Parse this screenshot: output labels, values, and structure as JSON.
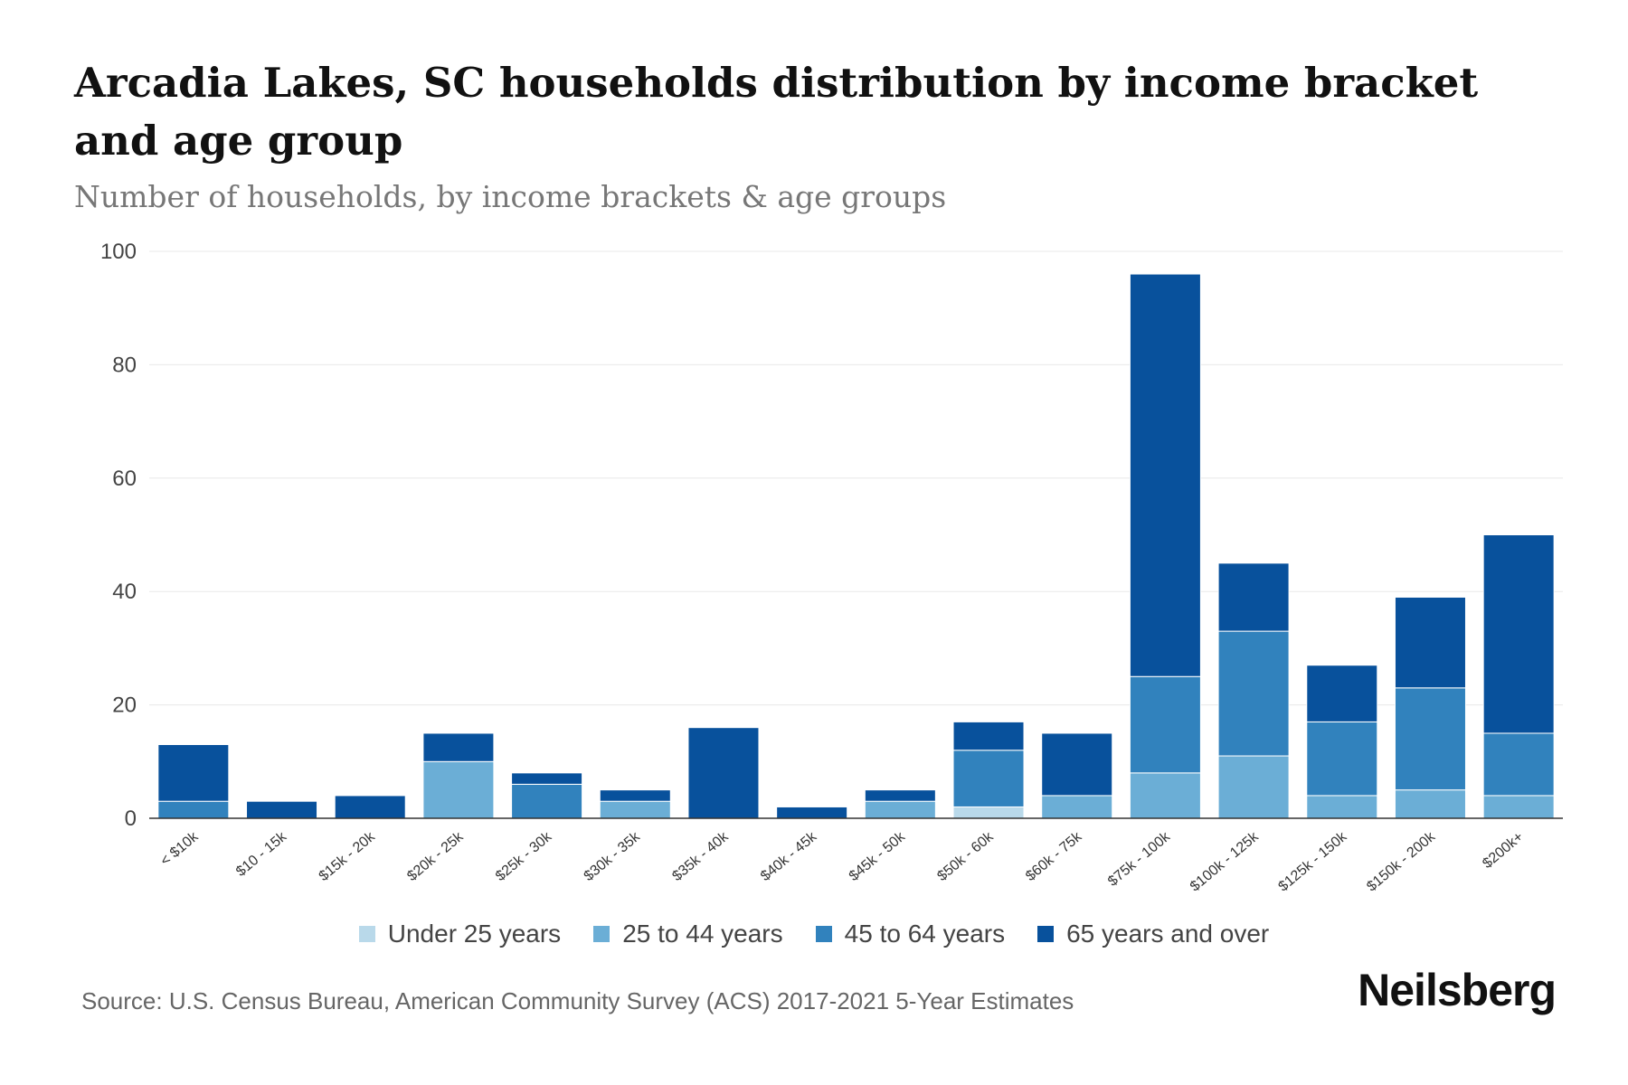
{
  "chart_data": {
    "type": "bar",
    "stacked": true,
    "title": "Arcadia Lakes, SC households distribution by income bracket and age group",
    "subtitle": "Number of households, by income brackets & age groups",
    "xlabel": "",
    "ylabel": "",
    "ylim": [
      0,
      100
    ],
    "yticks": [
      0,
      20,
      40,
      60,
      80,
      100
    ],
    "grid": true,
    "legend_position": "bottom",
    "categories": [
      "< $10k",
      "$10 - 15k",
      "$15k - 20k",
      "$20k - 25k",
      "$25k - 30k",
      "$30k - 35k",
      "$35k - 40k",
      "$40k - 45k",
      "$45k - 50k",
      "$50k - 60k",
      "$60k - 75k",
      "$75k - 100k",
      "$100k - 125k",
      "$125k - 150k",
      "$150k - 200k",
      "$200k+"
    ],
    "series": [
      {
        "name": "Under 25 years",
        "color": "#b9d9ea",
        "values": [
          0,
          0,
          0,
          0,
          0,
          0,
          0,
          0,
          0,
          2,
          0,
          0,
          0,
          0,
          0,
          0
        ]
      },
      {
        "name": "25 to 44 years",
        "color": "#6baed6",
        "values": [
          0,
          0,
          0,
          10,
          0,
          3,
          0,
          0,
          3,
          0,
          4,
          8,
          11,
          4,
          5,
          4
        ]
      },
      {
        "name": "45 to 64 years",
        "color": "#3182bd",
        "values": [
          3,
          0,
          0,
          0,
          6,
          0,
          0,
          0,
          0,
          10,
          0,
          17,
          22,
          13,
          18,
          11
        ]
      },
      {
        "name": "65 years and over",
        "color": "#08519c",
        "values": [
          10,
          3,
          4,
          5,
          2,
          2,
          16,
          2,
          2,
          5,
          11,
          71,
          12,
          10,
          16,
          35
        ]
      }
    ]
  },
  "source": "Source: U.S. Census Bureau, American Community Survey (ACS) 2017-2021 5-Year Estimates",
  "brand": "Neilsberg"
}
